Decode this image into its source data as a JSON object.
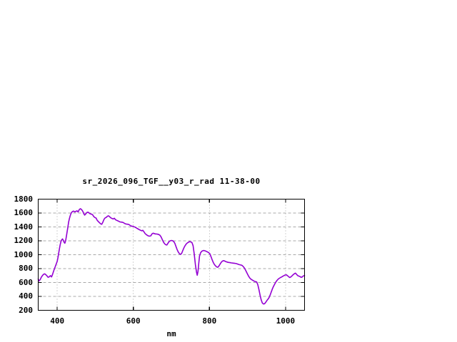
{
  "window": {
    "background": "#ffffff"
  },
  "chart_data": {
    "type": "line",
    "title": "sr_2026_096_TGF__y03_r_rad 11-38-00",
    "xlabel": "nm",
    "ylabel": "",
    "xlim": [
      350,
      1050
    ],
    "ylim": [
      200,
      1800
    ],
    "xticks": [
      400,
      600,
      800,
      1000
    ],
    "yticks": [
      200,
      400,
      600,
      800,
      1000,
      1200,
      1400,
      1600,
      1800
    ],
    "grid": true,
    "legend_position": "none",
    "colors": {
      "line": "#9400d3",
      "grid": "#a8a8a8",
      "axis": "#000000",
      "text": "#000000"
    },
    "points": [
      [
        350,
        650
      ],
      [
        352,
        622
      ],
      [
        355,
        640
      ],
      [
        358,
        675
      ],
      [
        361,
        700
      ],
      [
        364,
        718
      ],
      [
        367,
        725
      ],
      [
        370,
        712
      ],
      [
        373,
        695
      ],
      [
        376,
        675
      ],
      [
        379,
        682
      ],
      [
        382,
        700
      ],
      [
        385,
        680
      ],
      [
        388,
        720
      ],
      [
        391,
        770
      ],
      [
        394,
        815
      ],
      [
        397,
        860
      ],
      [
        400,
        905
      ],
      [
        402,
        960
      ],
      [
        404,
        1030
      ],
      [
        406,
        1090
      ],
      [
        408,
        1150
      ],
      [
        410,
        1195
      ],
      [
        412,
        1215
      ],
      [
        414,
        1228
      ],
      [
        416,
        1205
      ],
      [
        418,
        1180
      ],
      [
        420,
        1165
      ],
      [
        422,
        1200
      ],
      [
        424,
        1260
      ],
      [
        426,
        1330
      ],
      [
        428,
        1400
      ],
      [
        430,
        1470
      ],
      [
        432,
        1520
      ],
      [
        434,
        1560
      ],
      [
        436,
        1590
      ],
      [
        438,
        1610
      ],
      [
        440,
        1622
      ],
      [
        443,
        1628
      ],
      [
        446,
        1615
      ],
      [
        449,
        1625
      ],
      [
        452,
        1632
      ],
      [
        455,
        1615
      ],
      [
        458,
        1650
      ],
      [
        461,
        1663
      ],
      [
        464,
        1650
      ],
      [
        467,
        1628
      ],
      [
        470,
        1590
      ],
      [
        472,
        1570
      ],
      [
        475,
        1588
      ],
      [
        478,
        1608
      ],
      [
        481,
        1612
      ],
      [
        484,
        1600
      ],
      [
        487,
        1588
      ],
      [
        490,
        1585
      ],
      [
        493,
        1575
      ],
      [
        496,
        1550
      ],
      [
        499,
        1535
      ],
      [
        502,
        1528
      ],
      [
        505,
        1495
      ],
      [
        508,
        1478
      ],
      [
        511,
        1460
      ],
      [
        514,
        1445
      ],
      [
        517,
        1438
      ],
      [
        520,
        1470
      ],
      [
        523,
        1510
      ],
      [
        526,
        1530
      ],
      [
        529,
        1538
      ],
      [
        532,
        1555
      ],
      [
        535,
        1560
      ],
      [
        538,
        1545
      ],
      [
        541,
        1530
      ],
      [
        544,
        1522
      ],
      [
        547,
        1515
      ],
      [
        550,
        1525
      ],
      [
        553,
        1505
      ],
      [
        556,
        1495
      ],
      [
        559,
        1488
      ],
      [
        562,
        1480
      ],
      [
        565,
        1472
      ],
      [
        568,
        1470
      ],
      [
        571,
        1468
      ],
      [
        574,
        1462
      ],
      [
        577,
        1450
      ],
      [
        580,
        1443
      ],
      [
        583,
        1440
      ],
      [
        586,
        1438
      ],
      [
        589,
        1432
      ],
      [
        592,
        1420
      ],
      [
        595,
        1412
      ],
      [
        598,
        1408
      ],
      [
        601,
        1405
      ],
      [
        604,
        1398
      ],
      [
        607,
        1390
      ],
      [
        610,
        1378
      ],
      [
        613,
        1370
      ],
      [
        616,
        1360
      ],
      [
        619,
        1352
      ],
      [
        622,
        1345
      ],
      [
        625,
        1352
      ],
      [
        628,
        1330
      ],
      [
        631,
        1305
      ],
      [
        634,
        1290
      ],
      [
        637,
        1278
      ],
      [
        640,
        1270
      ],
      [
        643,
        1268
      ],
      [
        646,
        1272
      ],
      [
        649,
        1300
      ],
      [
        652,
        1310
      ],
      [
        655,
        1305
      ],
      [
        658,
        1300
      ],
      [
        661,
        1298
      ],
      [
        664,
        1295
      ],
      [
        667,
        1290
      ],
      [
        670,
        1280
      ],
      [
        673,
        1255
      ],
      [
        676,
        1220
      ],
      [
        679,
        1185
      ],
      [
        682,
        1160
      ],
      [
        685,
        1145
      ],
      [
        688,
        1140
      ],
      [
        691,
        1165
      ],
      [
        694,
        1190
      ],
      [
        697,
        1200
      ],
      [
        700,
        1205
      ],
      [
        703,
        1202
      ],
      [
        706,
        1192
      ],
      [
        709,
        1165
      ],
      [
        712,
        1120
      ],
      [
        715,
        1075
      ],
      [
        718,
        1040
      ],
      [
        721,
        1015
      ],
      [
        724,
        1005
      ],
      [
        727,
        1020
      ],
      [
        730,
        1060
      ],
      [
        733,
        1100
      ],
      [
        736,
        1130
      ],
      [
        739,
        1155
      ],
      [
        742,
        1170
      ],
      [
        745,
        1180
      ],
      [
        748,
        1188
      ],
      [
        751,
        1185
      ],
      [
        754,
        1175
      ],
      [
        757,
        1130
      ],
      [
        760,
        1010
      ],
      [
        763,
        860
      ],
      [
        766,
        750
      ],
      [
        768,
        705
      ],
      [
        770,
        760
      ],
      [
        772,
        880
      ],
      [
        774,
        980
      ],
      [
        777,
        1030
      ],
      [
        780,
        1050
      ],
      [
        783,
        1058
      ],
      [
        786,
        1060
      ],
      [
        789,
        1055
      ],
      [
        792,
        1048
      ],
      [
        795,
        1040
      ],
      [
        798,
        1030
      ],
      [
        801,
        1015
      ],
      [
        804,
        975
      ],
      [
        807,
        930
      ],
      [
        810,
        890
      ],
      [
        813,
        860
      ],
      [
        816,
        840
      ],
      [
        819,
        825
      ],
      [
        822,
        820
      ],
      [
        825,
        838
      ],
      [
        828,
        865
      ],
      [
        831,
        890
      ],
      [
        834,
        908
      ],
      [
        837,
        915
      ],
      [
        840,
        910
      ],
      [
        843,
        902
      ],
      [
        846,
        895
      ],
      [
        849,
        890
      ],
      [
        852,
        888
      ],
      [
        855,
        885
      ],
      [
        858,
        882
      ],
      [
        861,
        880
      ],
      [
        864,
        878
      ],
      [
        867,
        876
      ],
      [
        870,
        873
      ],
      [
        873,
        868
      ],
      [
        876,
        862
      ],
      [
        879,
        856
      ],
      [
        882,
        852
      ],
      [
        885,
        848
      ],
      [
        888,
        835
      ],
      [
        891,
        815
      ],
      [
        894,
        788
      ],
      [
        897,
        755
      ],
      [
        900,
        722
      ],
      [
        903,
        690
      ],
      [
        906,
        665
      ],
      [
        909,
        648
      ],
      [
        912,
        638
      ],
      [
        915,
        628
      ],
      [
        918,
        618
      ],
      [
        921,
        612
      ],
      [
        924,
        608
      ],
      [
        927,
        570
      ],
      [
        930,
        500
      ],
      [
        933,
        420
      ],
      [
        936,
        350
      ],
      [
        939,
        305
      ],
      [
        942,
        290
      ],
      [
        945,
        295
      ],
      [
        948,
        315
      ],
      [
        951,
        340
      ],
      [
        954,
        360
      ],
      [
        957,
        385
      ],
      [
        960,
        425
      ],
      [
        963,
        470
      ],
      [
        966,
        515
      ],
      [
        969,
        550
      ],
      [
        972,
        580
      ],
      [
        975,
        610
      ],
      [
        978,
        632
      ],
      [
        981,
        650
      ],
      [
        984,
        662
      ],
      [
        987,
        672
      ],
      [
        990,
        680
      ],
      [
        993,
        690
      ],
      [
        996,
        700
      ],
      [
        999,
        708
      ],
      [
        1002,
        712
      ],
      [
        1005,
        700
      ],
      [
        1008,
        685
      ],
      [
        1011,
        672
      ],
      [
        1014,
        680
      ],
      [
        1017,
        695
      ],
      [
        1020,
        712
      ],
      [
        1023,
        725
      ],
      [
        1026,
        735
      ],
      [
        1029,
        718
      ],
      [
        1032,
        700
      ],
      [
        1035,
        692
      ],
      [
        1038,
        685
      ],
      [
        1041,
        675
      ],
      [
        1044,
        680
      ],
      [
        1047,
        695
      ],
      [
        1050,
        700
      ]
    ]
  }
}
